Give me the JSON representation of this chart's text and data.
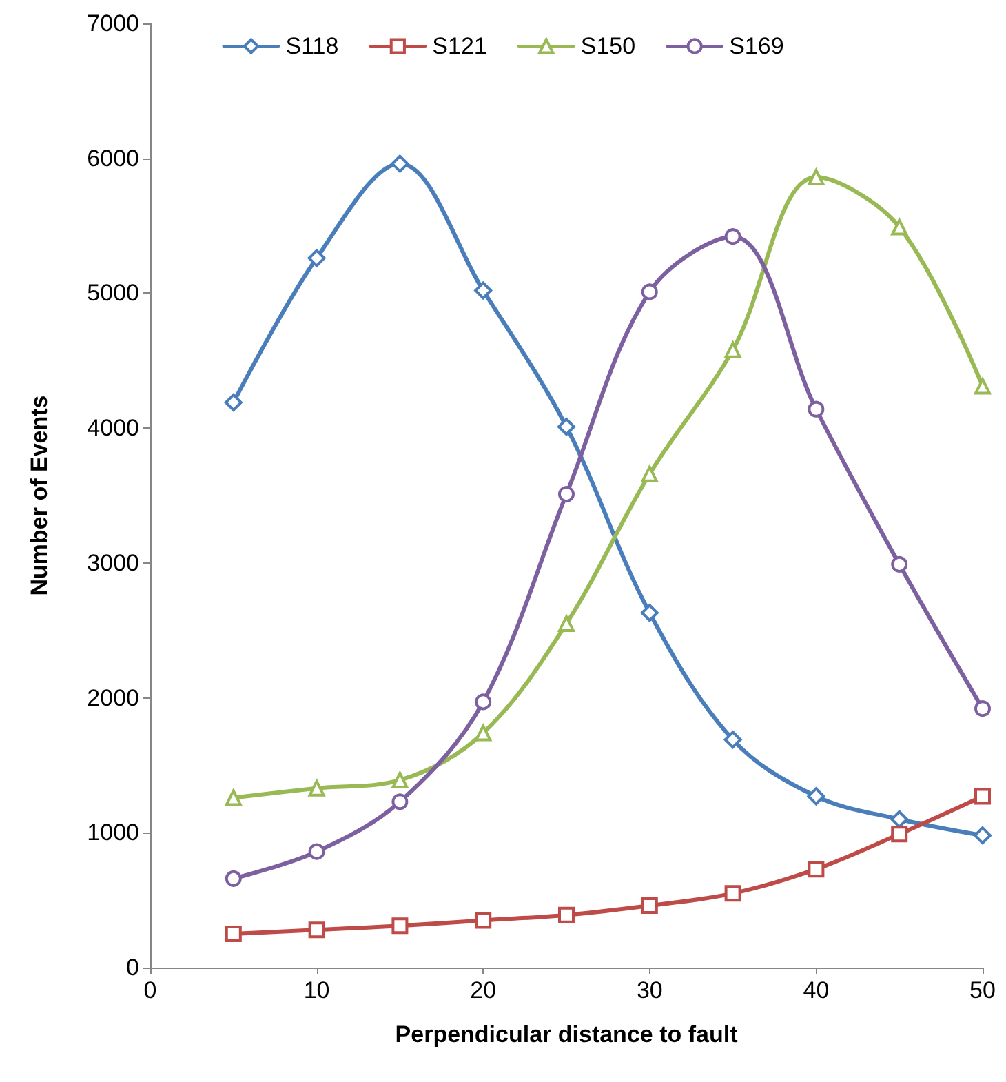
{
  "chart_data": {
    "type": "line",
    "xlabel": "Perpendicular distance to fault",
    "ylabel": "Number of Events",
    "x": [
      5,
      10,
      15,
      20,
      25,
      30,
      35,
      40,
      45,
      50
    ],
    "series": [
      {
        "name": "S118",
        "color": "#4a7ebb",
        "marker": "diamond",
        "values": [
          4190,
          5260,
          5960,
          5020,
          4010,
          2630,
          1690,
          1270,
          1100,
          980
        ]
      },
      {
        "name": "S121",
        "color": "#be4b48",
        "marker": "square",
        "values": [
          250,
          280,
          310,
          350,
          390,
          460,
          550,
          730,
          990,
          1270
        ]
      },
      {
        "name": "S150",
        "color": "#98b954",
        "marker": "triangle",
        "values": [
          1260,
          1330,
          1390,
          1740,
          2550,
          3660,
          4580,
          5860,
          5490,
          4310
        ]
      },
      {
        "name": "S169",
        "color": "#7d60a0",
        "marker": "circle",
        "values": [
          660,
          860,
          1230,
          1970,
          3510,
          5010,
          5420,
          4140,
          2990,
          1920
        ]
      }
    ],
    "xlim": [
      0,
      50
    ],
    "xticks": [
      0,
      10,
      20,
      30,
      40,
      50
    ],
    "ylim": [
      0,
      7000
    ],
    "yticks": [
      0,
      1000,
      2000,
      3000,
      4000,
      5000,
      6000,
      7000
    ],
    "grid": false,
    "legend": "top",
    "line_style": "solid"
  }
}
